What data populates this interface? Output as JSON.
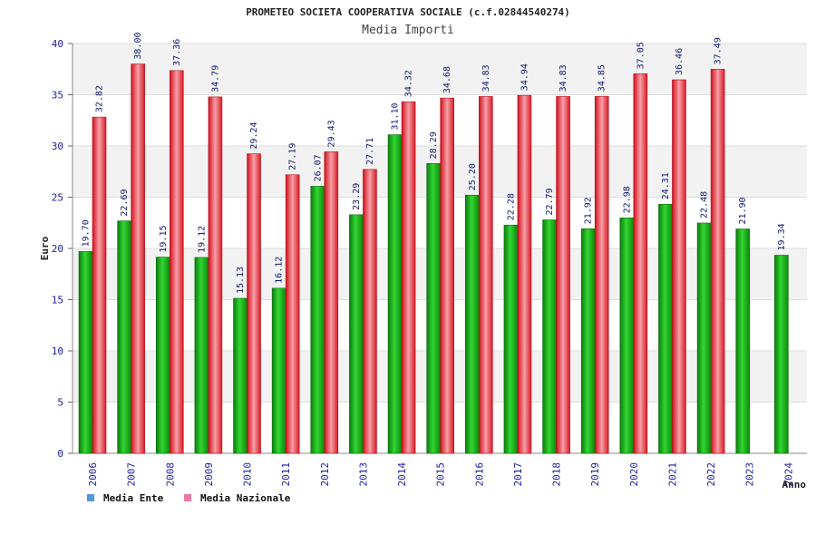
{
  "chart_data": {
    "type": "bar",
    "title": "PROMETEO SOCIETA COOPERATIVA SOCIALE (c.f.02844540274)",
    "subtitle": "Media Importi",
    "ylabel": "Euro",
    "xlabel": "Anno",
    "ylim": [
      0,
      40
    ],
    "yticks": [
      "0",
      "5",
      "10",
      "15",
      "20",
      "25",
      "30",
      "35",
      "40"
    ],
    "categories": [
      "2006",
      "2007",
      "2008",
      "2009",
      "2010",
      "2011",
      "2012",
      "2013",
      "2014",
      "2015",
      "2016",
      "2017",
      "2018",
      "2019",
      "2020",
      "2021",
      "2022",
      "2023",
      "2024"
    ],
    "series": [
      {
        "name": "Media Ente",
        "values": [
          19.7,
          22.69,
          19.15,
          19.12,
          15.13,
          16.12,
          26.07,
          23.29,
          31.1,
          28.29,
          25.2,
          22.28,
          22.79,
          21.92,
          22.98,
          24.31,
          22.48,
          21.9,
          19.34
        ],
        "labels": [
          "19.70",
          "22.69",
          "19.15",
          "19.12",
          "15.13",
          "16.12",
          "26.07",
          "23.29",
          "31.10",
          "28.29",
          "25.20",
          "22.28",
          "22.79",
          "21.92",
          "22.98",
          "24.31",
          "22.48",
          "21.90",
          "19.34"
        ],
        "color": "#0a9e0a",
        "legend_color": "#4f97e0"
      },
      {
        "name": "Media Nazionale",
        "values": [
          32.82,
          38.0,
          37.36,
          34.79,
          29.24,
          27.19,
          29.43,
          27.71,
          34.32,
          34.68,
          34.83,
          34.94,
          34.83,
          34.85,
          37.05,
          36.46,
          37.49,
          null,
          null
        ],
        "labels": [
          "32.82",
          "38.00",
          "37.36",
          "34.79",
          "29.24",
          "27.19",
          "29.43",
          "27.71",
          "34.32",
          "34.68",
          "34.83",
          "34.94",
          "34.83",
          "34.85",
          "37.05",
          "36.46",
          "37.49",
          null,
          null
        ],
        "color": "#e8202a",
        "legend_color": "#e87aa8"
      }
    ],
    "grid": true,
    "legend_position": "bottom-left"
  }
}
